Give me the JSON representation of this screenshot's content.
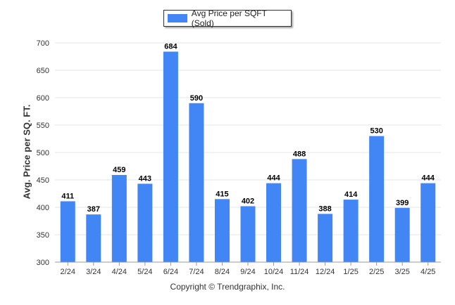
{
  "colors": {
    "bar": "#4285f4",
    "grid": "#e6e6e6",
    "axis": "#999999",
    "label": "#000000"
  },
  "legend": {
    "label": "Avg Price per SQFT (Sold)"
  },
  "footer": {
    "copyright": "Copyright © Trendgraphix, Inc."
  },
  "chart_data": {
    "type": "bar",
    "title": "",
    "xlabel": "",
    "ylabel": "Avg. Price per SQ. FT.",
    "categories": [
      "2/24",
      "3/24",
      "4/24",
      "5/24",
      "6/24",
      "7/24",
      "8/24",
      "9/24",
      "10/24",
      "11/24",
      "12/24",
      "1/25",
      "2/25",
      "3/25",
      "4/25"
    ],
    "series": [
      {
        "name": "Avg Price per SQFT (Sold)",
        "values": [
          411,
          387,
          459,
          443,
          684,
          590,
          415,
          402,
          444,
          488,
          388,
          414,
          530,
          399,
          444
        ]
      }
    ],
    "ylim": [
      300,
      700
    ],
    "yticks": [
      300,
      350,
      400,
      450,
      500,
      550,
      600,
      650,
      700
    ],
    "grid": true,
    "legend_position": "top-center",
    "data_labels": true
  }
}
